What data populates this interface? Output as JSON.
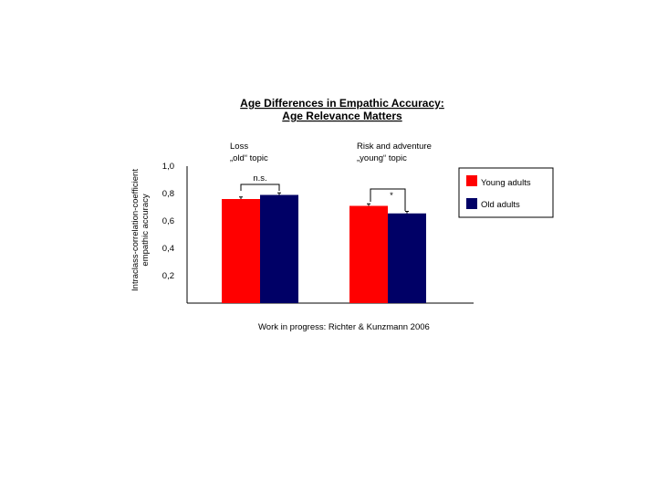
{
  "colors": {
    "young": "#ff0000",
    "old": "#000066",
    "axis": "#000000"
  },
  "chart_data": {
    "type": "bar",
    "title_lines": [
      "Age Differences in Empathic Accuracy:",
      "Age Relevance Matters"
    ],
    "ylabel_lines": [
      "Intraclass-correlation-coefficient",
      "empathic accuracy"
    ],
    "ylim": [
      0,
      1.0
    ],
    "yticks": [
      "0,2",
      "0,4",
      "0,6",
      "0,8",
      "1,0"
    ],
    "ytick_values": [
      0.2,
      0.4,
      0.6,
      0.8,
      1.0
    ],
    "legend_position": "right",
    "categories": [
      {
        "label_lines": [
          "Loss",
          "„old“ topic"
        ]
      },
      {
        "label_lines": [
          "Risk and adventure",
          "„young“ topic"
        ]
      }
    ],
    "series": [
      {
        "name": "Young adults",
        "values": [
          0.76,
          0.71
        ],
        "errors": [
          0.015,
          0.015
        ]
      },
      {
        "name": "Old adults",
        "values": [
          0.79,
          0.655
        ],
        "errors": [
          0.015,
          0.015
        ]
      }
    ],
    "annotations": [
      "n.s.",
      "*"
    ],
    "footnote": "Work in progress: Richter & Kunzmann 2006"
  }
}
